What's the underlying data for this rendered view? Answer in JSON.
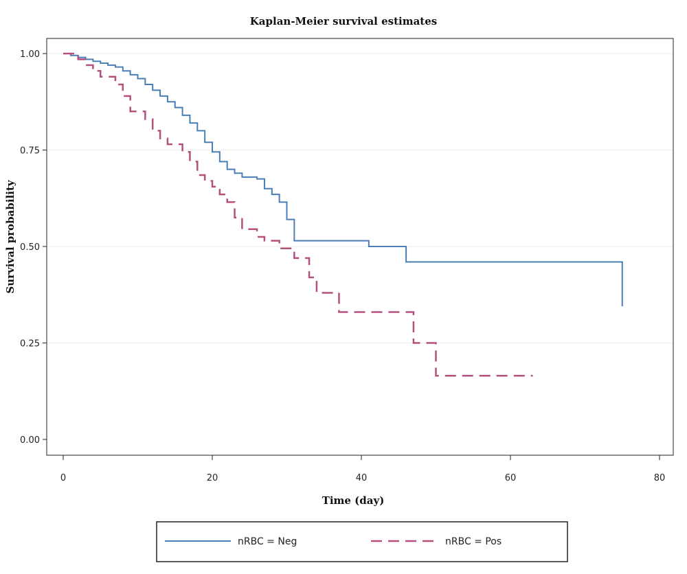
{
  "chart_data": {
    "type": "line",
    "title": "Kaplan-Meier survival estimates",
    "xlabel": "Time (day)",
    "ylabel": "Survival probability",
    "xlim": [
      0,
      80
    ],
    "ylim": [
      0,
      1
    ],
    "xticks": [
      0,
      20,
      40,
      60,
      80
    ],
    "xtick_labels": [
      "0",
      "20",
      "40",
      "60",
      "80"
    ],
    "yticks": [
      0,
      0.25,
      0.5,
      0.75,
      1.0
    ],
    "ytick_labels": [
      "0.00",
      "0.25",
      "0.50",
      "0.75",
      "1.00"
    ],
    "grid": "horizontal",
    "legend_position": "bottom",
    "series": [
      {
        "name": "nRBC = Neg",
        "color": "#4a7fb5",
        "style": "solid",
        "step": true,
        "x": [
          0,
          1,
          2,
          3,
          4,
          5,
          6,
          7,
          8,
          9,
          10,
          11,
          12,
          13,
          14,
          15,
          16,
          17,
          18,
          19,
          20,
          21,
          22,
          23,
          24,
          26,
          27,
          28,
          29,
          30,
          31,
          41,
          46,
          75
        ],
        "y": [
          1.0,
          0.995,
          0.99,
          0.985,
          0.98,
          0.975,
          0.97,
          0.965,
          0.955,
          0.945,
          0.935,
          0.92,
          0.905,
          0.89,
          0.875,
          0.86,
          0.84,
          0.82,
          0.8,
          0.77,
          0.745,
          0.72,
          0.7,
          0.69,
          0.68,
          0.675,
          0.65,
          0.635,
          0.615,
          0.57,
          0.515,
          0.5,
          0.46,
          0.345
        ]
      },
      {
        "name": "nRBC = Pos",
        "color": "#b5507e",
        "style": "dashed",
        "step": true,
        "x": [
          0,
          2,
          3,
          4,
          5,
          7,
          8,
          9,
          11,
          12,
          13,
          14,
          16,
          17,
          18,
          19,
          20,
          21,
          22,
          23,
          24,
          26,
          27,
          29,
          31,
          33,
          34,
          37,
          47,
          50,
          63
        ],
        "y": [
          1.0,
          0.985,
          0.97,
          0.955,
          0.94,
          0.92,
          0.89,
          0.85,
          0.83,
          0.8,
          0.78,
          0.765,
          0.745,
          0.72,
          0.685,
          0.67,
          0.655,
          0.635,
          0.615,
          0.575,
          0.545,
          0.525,
          0.515,
          0.495,
          0.47,
          0.42,
          0.38,
          0.33,
          0.25,
          0.165,
          0.165
        ]
      }
    ]
  }
}
